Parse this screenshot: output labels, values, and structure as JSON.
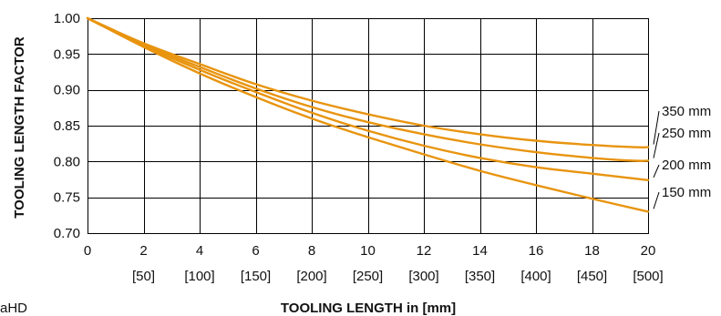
{
  "chart_data": {
    "type": "line",
    "xlabel": "TOOLING LENGTH in [mm]",
    "ylabel": "TOOLING LENGTH FACTOR",
    "x_ticks": [
      {
        "value": 0,
        "label": "0",
        "sublabel": ""
      },
      {
        "value": 2,
        "label": "2",
        "sublabel": "[50]"
      },
      {
        "value": 4,
        "label": "4",
        "sublabel": "[100]"
      },
      {
        "value": 6,
        "label": "6",
        "sublabel": "[150]"
      },
      {
        "value": 8,
        "label": "8",
        "sublabel": "[200]"
      },
      {
        "value": 10,
        "label": "10",
        "sublabel": "[250]"
      },
      {
        "value": 12,
        "label": "12",
        "sublabel": "[300]"
      },
      {
        "value": 14,
        "label": "14",
        "sublabel": "[350]"
      },
      {
        "value": 16,
        "label": "16",
        "sublabel": "[400]"
      },
      {
        "value": 18,
        "label": "18",
        "sublabel": "[450]"
      },
      {
        "value": 20,
        "label": "20",
        "sublabel": "[500]"
      }
    ],
    "y_ticks": [
      "1.00",
      "0.95",
      "0.90",
      "0.85",
      "0.80",
      "0.75",
      "0.70"
    ],
    "xlim": [
      0,
      20
    ],
    "ylim": [
      0.7,
      1.0
    ],
    "grid": true,
    "legend": "direct labels at right end of each line",
    "series": [
      {
        "name": "350 mm",
        "x": [
          0,
          2,
          4,
          6,
          8,
          10,
          12,
          14,
          16,
          18,
          19.5,
          20
        ],
        "y": [
          1.0,
          0.965,
          0.936,
          0.908,
          0.885,
          0.866,
          0.85,
          0.838,
          0.829,
          0.823,
          0.82,
          0.82
        ]
      },
      {
        "name": "250 mm",
        "x": [
          0,
          2,
          4,
          6,
          8,
          10,
          12,
          14,
          16,
          18,
          19.5,
          20
        ],
        "y": [
          1.0,
          0.963,
          0.932,
          0.902,
          0.876,
          0.855,
          0.838,
          0.824,
          0.813,
          0.805,
          0.801,
          0.801
        ]
      },
      {
        "name": "200 mm",
        "x": [
          0,
          2,
          4,
          6,
          8,
          10,
          12,
          14,
          16,
          18,
          20
        ],
        "y": [
          1.0,
          0.962,
          0.928,
          0.897,
          0.868,
          0.843,
          0.822,
          0.805,
          0.792,
          0.783,
          0.774
        ]
      },
      {
        "name": "150 mm",
        "x": [
          0,
          2,
          4,
          6,
          8,
          10,
          12,
          14,
          16,
          18,
          20
        ],
        "y": [
          1.0,
          0.96,
          0.923,
          0.89,
          0.86,
          0.834,
          0.81,
          0.787,
          0.767,
          0.748,
          0.73
        ]
      }
    ],
    "colors": {
      "line": "#E8940F"
    }
  },
  "corner_text": "aHD"
}
